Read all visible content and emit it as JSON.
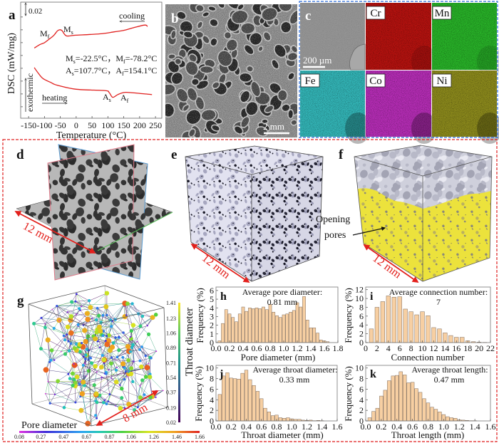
{
  "panel_labels": {
    "a": "a",
    "b": "b",
    "c": "c",
    "d": "d",
    "e": "e",
    "f": "f",
    "g": "g",
    "h": "h",
    "i": "i",
    "j": "j",
    "k": "k"
  },
  "colors": {
    "accent_red": "#e3201c",
    "dashed_red": "#e02020",
    "dashed_blue": "#2a6ad8",
    "dsc_curve": "#e0201e"
  },
  "panel_a": {
    "scale_bar_label": "0.02",
    "cooling_label": "cooling",
    "heating_label": "heating",
    "exothermic_label": "exothermic",
    "peaks": [
      {
        "symbol": "M",
        "sub": "f"
      },
      {
        "symbol": "M",
        "sub": "s"
      },
      {
        "symbol": "A",
        "sub": "s"
      },
      {
        "symbol": "A",
        "sub": "f"
      }
    ],
    "transition_temps": [
      {
        "symbol": "M",
        "sub": "s",
        "value": "=-22.5°C，"
      },
      {
        "symbol": "M",
        "sub": "f",
        "value": "=-78.2°C"
      },
      {
        "symbol": "A",
        "sub": "s",
        "value": "=107.7°C，"
      },
      {
        "symbol": "A",
        "sub": "f",
        "value": "=154.1°C"
      }
    ]
  },
  "panel_b": {
    "scale_bar_label": "2 mm"
  },
  "panel_c": {
    "scale_bar_label": "200 µm",
    "sem_color": "#949494",
    "maps": [
      {
        "element": "Cr",
        "color": "#b5120f"
      },
      {
        "element": "Mn",
        "color": "#28b228"
      },
      {
        "element": "Fe",
        "color": "#33b6b8"
      },
      {
        "element": "Co",
        "color": "#b62db6"
      },
      {
        "element": "Ni",
        "color": "#8c8a1c"
      }
    ]
  },
  "panel_d": {
    "scale_label": "12 mm"
  },
  "panel_e": {
    "scale_label": "12 mm"
  },
  "panel_f": {
    "scale_label": "12 mm",
    "annotation": [
      "Opening",
      "pores"
    ]
  },
  "panel_g": {
    "scale_label": "8 mm",
    "pore_colorbar": {
      "title": "Pore diameter",
      "ticks": [
        "0.08",
        "0.27",
        "0.47",
        "0.67",
        "0.87",
        "1.06",
        "1.26",
        "1.46",
        "1.66"
      ]
    },
    "throat_colorbar": {
      "title": "Throat diameter",
      "ticks": [
        "1.41",
        "1.23",
        "1.06",
        "0.89",
        "0.71",
        "0.54",
        "0.37",
        "0.19",
        "0.02"
      ]
    }
  },
  "chart_data": [
    {
      "id": "a",
      "type": "line",
      "title": "",
      "xlabel": "Temperature (°C)",
      "ylabel": "DSC (mW/mg)",
      "xlim": [
        -175,
        270
      ],
      "ylim": [
        -0.017,
        0.155
      ],
      "xticks": [
        "-150",
        "-100",
        "-50",
        "0",
        "50",
        "100",
        "150",
        "200",
        "250"
      ],
      "yticks": [
        0,
        0.019,
        0.038,
        0.057,
        0.076,
        0.095,
        0.114,
        0.133
      ],
      "grid": false,
      "series": [
        {
          "name": "cooling",
          "x": [
            -132,
            -115,
            -100,
            -83,
            -70,
            -60,
            -53,
            -45,
            -38,
            -31,
            -20,
            0,
            75,
            120,
            149,
            180,
            216,
            225
          ],
          "y": [
            0.087,
            0.092,
            0.095,
            0.101,
            0.106,
            0.112,
            0.114,
            0.113,
            0.108,
            0.105,
            0.105,
            0.106,
            0.108,
            0.111,
            0.113,
            0.117,
            0.121,
            0.119
          ]
        },
        {
          "name": "heating",
          "x": [
            -132,
            -120,
            -105,
            -80,
            -60,
            0,
            90,
            104,
            115,
            131,
            149,
            171,
            239
          ],
          "y": [
            0.058,
            0.05,
            0.042,
            0.036,
            0.032,
            0.026,
            0.024,
            0.021,
            0.014,
            0.018,
            0.021,
            0.021,
            0.018
          ]
        }
      ]
    },
    {
      "id": "h",
      "type": "bar",
      "title": "Average pore diameter:",
      "subtitle": "0.81 mm",
      "xlabel": "Pore diameter (mm)",
      "ylabel": "Frequency (%)",
      "xlim": [
        0,
        1.8
      ],
      "ylim": [
        0,
        6.4
      ],
      "xticks": [
        "0.0",
        "0.2",
        "0.4",
        "0.6",
        "0.8",
        "1.0",
        "1.2",
        "1.4",
        "1.6",
        "1.8"
      ],
      "yticks": [
        "0",
        "1",
        "2",
        "3",
        "4",
        "5",
        "6"
      ],
      "bin_width": 0.05,
      "bar_color": "#f7cfa2",
      "bar_edge": "#7d6a5a",
      "x": [
        0.05,
        0.1,
        0.15,
        0.2,
        0.25,
        0.3,
        0.35,
        0.4,
        0.45,
        0.5,
        0.55,
        0.6,
        0.65,
        0.7,
        0.75,
        0.8,
        0.85,
        0.9,
        0.95,
        1.0,
        1.05,
        1.1,
        1.15,
        1.2,
        1.25,
        1.3,
        1.35,
        1.4,
        1.45,
        1.5,
        1.55,
        1.6,
        1.65
      ],
      "values": [
        0.2,
        2.2,
        3.8,
        3.3,
        2.9,
        2.4,
        3.3,
        4.1,
        3.6,
        4.0,
        3.9,
        4.0,
        3.9,
        4.1,
        3.8,
        4.4,
        3.5,
        3.1,
        2.9,
        3.2,
        3.3,
        3.5,
        3.7,
        4.6,
        4.1,
        5.3,
        2.6,
        1.7,
        1.7,
        1.1,
        0.3,
        0.2,
        0.1
      ]
    },
    {
      "id": "i",
      "type": "bar",
      "title": "Average connection number:",
      "subtitle": "7",
      "xlabel": "Connection number",
      "ylabel": "Frequency (%)",
      "xlim": [
        0,
        22
      ],
      "ylim": [
        0,
        12.6
      ],
      "xticks": [
        "0",
        "2",
        "4",
        "6",
        "8",
        "10",
        "12",
        "14",
        "16",
        "18",
        "20",
        "22"
      ],
      "yticks": [
        "0",
        "2",
        "4",
        "6",
        "8",
        "10",
        "12"
      ],
      "bin_width": 0.8,
      "bar_color": "#f7cfa2",
      "bar_edge": "#7d6a5a",
      "x": [
        1,
        2,
        3,
        4,
        5,
        6,
        7,
        8,
        9,
        10,
        11,
        12,
        13,
        14,
        15,
        16,
        17,
        18,
        19,
        20,
        21
      ],
      "values": [
        3.1,
        8.0,
        9.3,
        10.6,
        10.3,
        10.4,
        7.6,
        7.0,
        6.3,
        7.0,
        6.1,
        3.4,
        3.1,
        2.2,
        1.6,
        1.2,
        1.2,
        0.4,
        0.2,
        0.1,
        0.05
      ]
    },
    {
      "id": "j",
      "type": "bar",
      "title": "Average throat diameter:",
      "subtitle": "0.33 mm",
      "xlabel": "Throat diameter (mm)",
      "ylabel": "Frequency (%)",
      "xlim": [
        0,
        1.6
      ],
      "ylim": [
        0,
        10.5
      ],
      "xticks": [
        "0.0",
        "0.2",
        "0.4",
        "0.6",
        "0.8",
        "1.0",
        "1.2",
        "1.4",
        "1.6"
      ],
      "yticks": [
        "0",
        "2",
        "4",
        "6",
        "8",
        "10"
      ],
      "bin_width": 0.05,
      "bar_color": "#f7cfa2",
      "bar_edge": "#7d6a5a",
      "x": [
        0.05,
        0.1,
        0.15,
        0.2,
        0.25,
        0.3,
        0.35,
        0.4,
        0.45,
        0.5,
        0.55,
        0.6,
        0.65,
        0.7,
        0.75,
        0.8,
        0.85,
        0.9,
        0.95,
        1.0,
        1.05,
        1.1,
        1.15,
        1.2,
        1.25,
        1.3,
        1.35,
        1.4
      ],
      "values": [
        5.0,
        8.5,
        9.1,
        8.1,
        8.0,
        7.9,
        9.0,
        9.6,
        7.8,
        6.7,
        5.6,
        4.2,
        2.4,
        1.7,
        1.0,
        1.1,
        0.6,
        0.5,
        0.6,
        0.4,
        0.3,
        0.3,
        0.15,
        0.1,
        0.15,
        0.05,
        0.1,
        0.05
      ]
    },
    {
      "id": "k",
      "type": "bar",
      "title": "Average throat length:",
      "subtitle": "0.47 mm",
      "xlabel": "Throat length (mm)",
      "ylabel": "Frequency (%)",
      "xlim": [
        0,
        1.6
      ],
      "ylim": [
        0,
        10.5
      ],
      "xticks": [
        "0.0",
        "0.2",
        "0.4",
        "0.6",
        "0.8",
        "1.0",
        "1.2",
        "1.4",
        "1.6"
      ],
      "yticks": [
        "0",
        "2",
        "4",
        "6",
        "8",
        "10"
      ],
      "bin_width": 0.05,
      "bar_color": "#f7cfa2",
      "bar_edge": "#7d6a5a",
      "x": [
        0.05,
        0.1,
        0.15,
        0.2,
        0.25,
        0.3,
        0.35,
        0.4,
        0.45,
        0.5,
        0.55,
        0.6,
        0.65,
        0.7,
        0.75,
        0.8,
        0.85,
        0.9,
        0.95,
        1.0,
        1.05,
        1.1,
        1.15,
        1.2,
        1.25,
        1.3,
        1.35,
        1.4
      ],
      "values": [
        0.6,
        1.8,
        2.4,
        4.7,
        5.8,
        7.6,
        8.5,
        8.6,
        9.3,
        8.7,
        7.2,
        7.3,
        6.1,
        5.4,
        4.2,
        3.4,
        2.6,
        2.2,
        1.7,
        1.2,
        0.8,
        0.6,
        0.5,
        0.2,
        0.15,
        0.1,
        0.05,
        0.05
      ]
    }
  ]
}
